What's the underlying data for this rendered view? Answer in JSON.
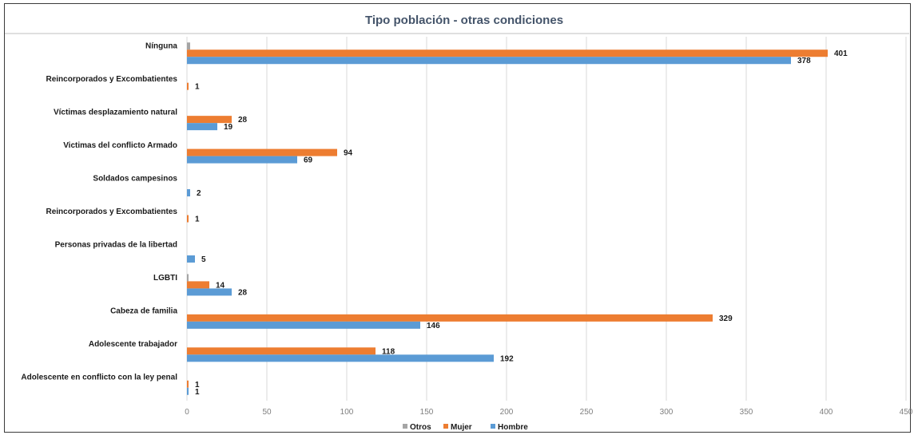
{
  "chart_data": {
    "type": "bar",
    "orientation": "horizontal",
    "title": "Tipo población - otras condiciones",
    "categories": [
      "Nínguna",
      "Reincorporados y Excombatientes",
      "Víctimas desplazamiento natural",
      "Victimas del conflicto Armado",
      "Soldados campesinos",
      "Reincorporados y Excombatientes",
      "Personas privadas de la libertad",
      "LGBTI",
      "Cabeza de familia",
      "Adolescente trabajador",
      "Adolescente en conflicto con la ley penal"
    ],
    "series": [
      {
        "name": "Otros",
        "color": "#a5a5a5",
        "values": [
          2,
          0,
          0,
          0,
          0,
          0,
          0,
          1,
          0,
          0,
          0
        ],
        "labels": [
          null,
          null,
          null,
          null,
          null,
          null,
          null,
          null,
          null,
          null,
          null
        ]
      },
      {
        "name": "Mujer",
        "color": "#ed7d31",
        "values": [
          401,
          1,
          28,
          94,
          0,
          1,
          0,
          14,
          329,
          118,
          1
        ],
        "labels": [
          401,
          1,
          28,
          94,
          null,
          1,
          null,
          14,
          329,
          118,
          1
        ]
      },
      {
        "name": "Hombre",
        "color": "#5b9bd5",
        "values": [
          378,
          0,
          19,
          69,
          2,
          0,
          5,
          28,
          146,
          192,
          1
        ],
        "labels": [
          378,
          null,
          19,
          69,
          2,
          null,
          5,
          28,
          146,
          192,
          1
        ]
      }
    ],
    "xlim": [
      0,
      450
    ],
    "xticks": [
      0,
      50,
      100,
      150,
      200,
      250,
      300,
      350,
      400,
      450
    ],
    "grid": "vertical",
    "legend_position": "bottom",
    "title_color": "#44546a"
  }
}
